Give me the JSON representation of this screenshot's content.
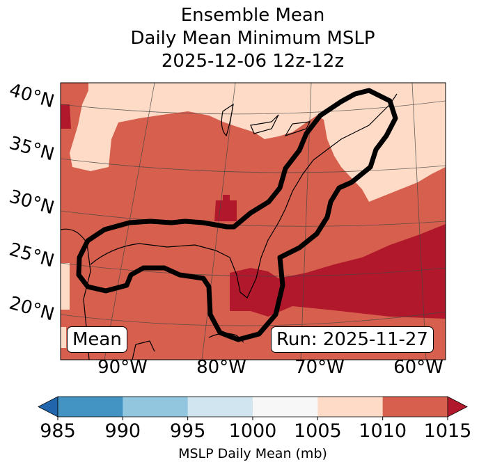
{
  "chart_data": {
    "type": "heatmap",
    "title_lines": [
      "Ensemble Mean",
      "Daily Mean Minimum MSLP",
      "2025-12-06 12z-12z"
    ],
    "map_projection": "conic",
    "lat_ticks": [
      "40°N",
      "35°N",
      "30°N",
      "25°N",
      "20°N"
    ],
    "lon_ticks": [
      "90°W",
      "80°W",
      "70°W",
      "60°W"
    ],
    "colorbar": {
      "label": "MSLP Daily Mean (mb)",
      "levels": [
        985,
        990,
        995,
        1000,
        1005,
        1010,
        1015
      ],
      "tick_labels": [
        "985",
        "990",
        "995",
        "1000",
        "1005",
        "1010",
        "1015"
      ],
      "colors": [
        "#4393c3",
        "#92c5de",
        "#d1e5f0",
        "#f7f7f7",
        "#fddbc7",
        "#d6604d"
      ],
      "under_color": "#2166ac",
      "over_color": "#b2182b",
      "extend": "both"
    },
    "field_summary": {
      "dominant_range": [
        1010,
        1015
      ],
      "north_and_northeast_range": [
        1005,
        1010
      ],
      "southeast_atlantic_range": [
        1015,
        null
      ]
    },
    "contour": {
      "color": "#000000",
      "description_level": "highlighted region"
    },
    "annotations": {
      "left": "Mean",
      "right": "Run: 2025-11-27"
    }
  }
}
